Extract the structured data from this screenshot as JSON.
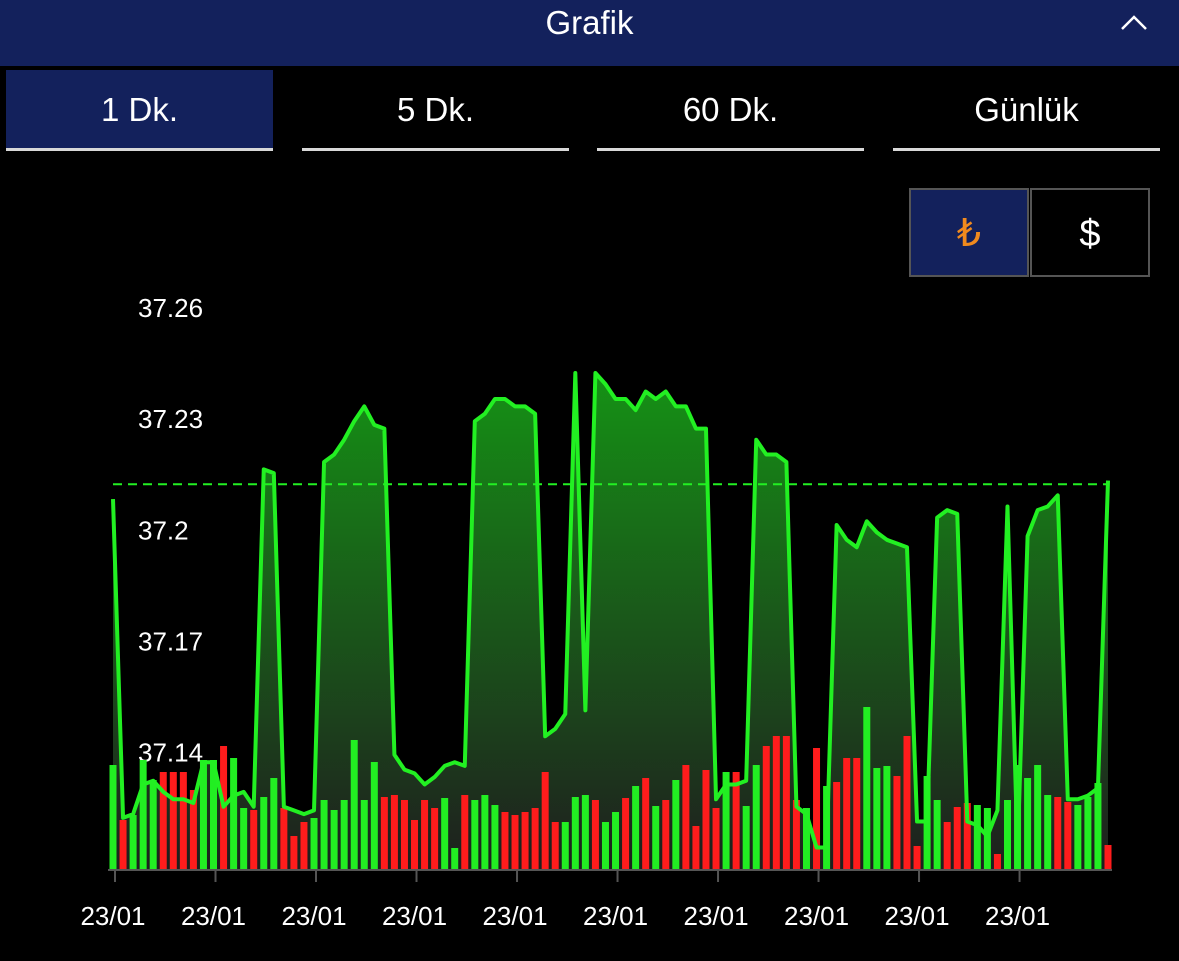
{
  "header": {
    "title": "Grafik"
  },
  "tabs": {
    "items": [
      "1 Dk.",
      "5 Dk.",
      "60 Dk.",
      "Günlük"
    ],
    "selected": 0
  },
  "currency": {
    "items": [
      "₺",
      "$"
    ],
    "selected": 0
  },
  "chart_data": {
    "type": "line",
    "categories": [
      "23/01",
      null,
      null,
      null,
      null,
      null,
      null,
      null,
      null,
      null,
      "23/01",
      null,
      null,
      null,
      null,
      null,
      null,
      null,
      null,
      null,
      "23/01",
      null,
      null,
      null,
      null,
      null,
      null,
      null,
      null,
      null,
      "23/01",
      null,
      null,
      null,
      null,
      null,
      null,
      null,
      null,
      null,
      "23/01",
      null,
      null,
      null,
      null,
      null,
      null,
      null,
      null,
      null,
      "23/01",
      null,
      null,
      null,
      null,
      null,
      null,
      null,
      null,
      null,
      "23/01",
      null,
      null,
      null,
      null,
      null,
      null,
      null,
      null,
      null,
      "23/01",
      null,
      null,
      null,
      null,
      null,
      null,
      null,
      null,
      null,
      "23/01",
      null,
      null,
      null,
      null,
      null,
      null,
      null,
      null,
      null,
      "23/01",
      null,
      null,
      null,
      null,
      null,
      null,
      null,
      null,
      null
    ],
    "series": [
      {
        "color": "#22f022",
        "values": [
          37.209,
          37.123,
          37.124,
          37.132,
          37.133,
          37.13,
          37.128,
          37.128,
          37.127,
          37.138,
          37.138,
          37.126,
          37.129,
          37.13,
          37.126,
          37.217,
          37.216,
          37.126,
          37.125,
          37.124,
          37.125,
          37.219,
          37.221,
          37.225,
          37.23,
          37.234,
          37.229,
          37.228,
          37.14,
          37.136,
          37.135,
          37.132,
          37.134,
          37.137,
          37.138,
          37.137,
          37.23,
          37.232,
          37.236,
          37.236,
          37.234,
          37.234,
          37.232,
          37.145,
          37.147,
          37.151,
          37.243,
          37.152,
          37.243,
          37.24,
          37.236,
          37.236,
          37.233,
          37.238,
          37.236,
          37.238,
          37.234,
          37.234,
          37.228,
          37.228,
          37.128,
          37.132,
          37.132,
          37.133,
          37.225,
          37.221,
          37.221,
          37.219,
          37.126,
          37.124,
          37.115,
          37.115,
          37.202,
          37.198,
          37.196,
          37.203,
          37.2,
          37.198,
          37.197,
          37.196,
          37.122,
          37.122,
          37.204,
          37.206,
          37.205,
          37.122,
          37.121,
          37.118,
          37.125,
          37.207,
          37.114,
          37.199,
          37.206,
          37.207,
          37.21,
          37.128,
          37.128,
          37.129,
          37.131,
          37.214
        ]
      }
    ],
    "reference_value": 37.213,
    "volume": {
      "up_color": "#22ee22",
      "down_color": "#ff1c1c",
      "values": [
        105,
        50,
        55,
        110,
        90,
        98,
        98,
        98,
        80,
        110,
        110,
        124,
        112,
        62,
        60,
        73,
        92,
        62,
        34,
        48,
        52,
        70,
        60,
        70,
        130,
        70,
        108,
        73,
        75,
        70,
        50,
        70,
        62,
        72,
        22,
        75,
        70,
        75,
        65,
        58,
        55,
        58,
        62,
        98,
        48,
        48,
        73,
        75,
        70,
        48,
        58,
        72,
        84,
        92,
        64,
        70,
        90,
        105,
        44,
        100,
        62,
        98,
        98,
        64,
        105,
        124,
        134,
        134,
        70,
        62,
        122,
        84,
        88,
        112,
        112,
        163,
        102,
        104,
        94,
        134,
        24,
        94,
        70,
        48,
        63,
        67,
        65,
        62,
        16,
        70,
        105,
        92,
        105,
        75,
        73,
        68,
        65,
        73,
        87,
        25
      ],
      "direction": [
        "up",
        "down",
        "up",
        "up",
        "up",
        "down",
        "down",
        "down",
        "down",
        "up",
        "up",
        "down",
        "up",
        "up",
        "down",
        "up",
        "up",
        "down",
        "down",
        "down",
        "up",
        "up",
        "up",
        "up",
        "up",
        "up",
        "up",
        "down",
        "down",
        "down",
        "down",
        "down",
        "down",
        "up",
        "up",
        "down",
        "up",
        "up",
        "up",
        "down",
        "down",
        "down",
        "down",
        "down",
        "down",
        "up",
        "up",
        "up",
        "down",
        "up",
        "up",
        "down",
        "up",
        "down",
        "up",
        "down",
        "up",
        "down",
        "down",
        "down",
        "down",
        "up",
        "down",
        "up",
        "up",
        "down",
        "down",
        "down",
        "down",
        "up",
        "down",
        "up",
        "down",
        "down",
        "down",
        "up",
        "up",
        "up",
        "down",
        "down",
        "down",
        "up",
        "up",
        "down",
        "down",
        "down",
        "up",
        "up",
        "down",
        "up",
        "up",
        "up",
        "up",
        "up",
        "down",
        "down",
        "up",
        "up",
        "up",
        "down"
      ]
    },
    "ylim": [
      37.11,
      37.26
    ],
    "yticks": [
      37.14,
      37.17,
      37.2,
      37.23,
      37.26
    ],
    "grid": false
  }
}
